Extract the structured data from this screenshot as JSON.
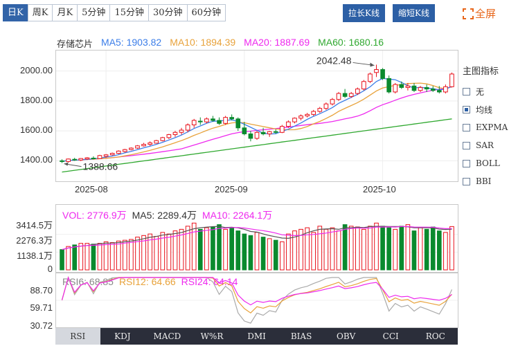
{
  "period_tabs": [
    {
      "label": "日K",
      "active": true
    },
    {
      "label": "周K",
      "active": false
    },
    {
      "label": "月K",
      "active": false
    },
    {
      "label": "5分钟",
      "active": false
    },
    {
      "label": "15分钟",
      "active": false
    },
    {
      "label": "30分钟",
      "active": false
    },
    {
      "label": "60分钟",
      "active": false
    }
  ],
  "toolbar": {
    "stretch_label": "拉长K线",
    "shrink_label": "缩短K线",
    "fullscreen_label": "全屏"
  },
  "legend": {
    "name": "存储芯片",
    "ma5": "MA5: 1903.82",
    "ma10": "MA10: 1894.39",
    "ma20": "MA20: 1887.69",
    "ma60": "MA60: 1680.16"
  },
  "colors": {
    "up": "#e8101a",
    "down": "#0a8a2e",
    "ma5": "#3b7de8",
    "ma10": "#e8a23a",
    "ma20": "#ee28ee",
    "ma60": "#2fa82f",
    "accent": "#2c5fa5",
    "fullscreen": "#e8661a"
  },
  "price_axis": [
    "2000.00",
    "1800.00",
    "1600.00",
    "1400.00"
  ],
  "date_axis": [
    "2025-08",
    "2025-09",
    "2025-10"
  ],
  "annotations": {
    "high": "2042.48",
    "low": "1388.66"
  },
  "volume": {
    "vol": "VOL: 2776.9万",
    "ma5": "MA5: 2289.4万",
    "ma10": "MA10: 2264.1万",
    "axis": [
      "3414.5万",
      "2276.3万",
      "1138.1万",
      "0"
    ]
  },
  "rsi": {
    "rsi6": "RSI6: 68.85",
    "rsi12": "RSI12: 64.66",
    "rsi24": "RSI24: 64.14",
    "axis": [
      "88.70",
      "59.71",
      "30.72"
    ]
  },
  "side_panel": {
    "title": "主图指标",
    "items": [
      {
        "label": "无",
        "checked": false
      },
      {
        "label": "均线",
        "checked": true
      },
      {
        "label": "EXPMA",
        "checked": false
      },
      {
        "label": "SAR",
        "checked": false
      },
      {
        "label": "BOLL",
        "checked": false
      },
      {
        "label": "BBI",
        "checked": false
      }
    ]
  },
  "indicator_tabs": [
    {
      "label": "RSI",
      "active": true
    },
    {
      "label": "KDJ",
      "active": false
    },
    {
      "label": "MACD",
      "active": false
    },
    {
      "label": "W%R",
      "active": false
    },
    {
      "label": "DMI",
      "active": false
    },
    {
      "label": "BIAS",
      "active": false
    },
    {
      "label": "OBV",
      "active": false
    },
    {
      "label": "CCI",
      "active": false
    },
    {
      "label": "ROC",
      "active": false
    }
  ],
  "chart_data": {
    "type": "candlestick",
    "title": "存储芯片",
    "ylim": [
      1300,
      2100
    ],
    "x_axis_ticks": [
      "2025-08",
      "2025-09",
      "2025-10"
    ],
    "candles_ohlc": [
      [
        1400,
        1410,
        1385,
        1395
      ],
      [
        1395,
        1415,
        1388.66,
        1412
      ],
      [
        1410,
        1420,
        1400,
        1405
      ],
      [
        1405,
        1418,
        1398,
        1415
      ],
      [
        1412,
        1425,
        1405,
        1420
      ],
      [
        1418,
        1430,
        1410,
        1415
      ],
      [
        1415,
        1440,
        1412,
        1435
      ],
      [
        1430,
        1445,
        1420,
        1440
      ],
      [
        1440,
        1455,
        1435,
        1450
      ],
      [
        1450,
        1470,
        1445,
        1465
      ],
      [
        1462,
        1480,
        1455,
        1475
      ],
      [
        1475,
        1490,
        1470,
        1485
      ],
      [
        1485,
        1505,
        1480,
        1500
      ],
      [
        1500,
        1520,
        1495,
        1510
      ],
      [
        1510,
        1530,
        1500,
        1520
      ],
      [
        1518,
        1540,
        1515,
        1535
      ],
      [
        1535,
        1560,
        1530,
        1555
      ],
      [
        1555,
        1580,
        1545,
        1575
      ],
      [
        1575,
        1600,
        1560,
        1590
      ],
      [
        1590,
        1620,
        1575,
        1605
      ],
      [
        1605,
        1650,
        1590,
        1640
      ],
      [
        1640,
        1680,
        1620,
        1670
      ],
      [
        1665,
        1690,
        1640,
        1660
      ],
      [
        1660,
        1690,
        1650,
        1680
      ],
      [
        1680,
        1700,
        1660,
        1670
      ],
      [
        1670,
        1690,
        1640,
        1650
      ],
      [
        1650,
        1700,
        1640,
        1690
      ],
      [
        1690,
        1710,
        1670,
        1680
      ],
      [
        1680,
        1690,
        1600,
        1620
      ],
      [
        1620,
        1660,
        1570,
        1580
      ],
      [
        1580,
        1600,
        1530,
        1550
      ],
      [
        1550,
        1600,
        1540,
        1590
      ],
      [
        1590,
        1620,
        1570,
        1580
      ],
      [
        1580,
        1600,
        1560,
        1595
      ],
      [
        1595,
        1610,
        1580,
        1590
      ],
      [
        1590,
        1640,
        1585,
        1630
      ],
      [
        1630,
        1670,
        1620,
        1660
      ],
      [
        1660,
        1690,
        1650,
        1685
      ],
      [
        1685,
        1710,
        1670,
        1700
      ],
      [
        1700,
        1720,
        1690,
        1710
      ],
      [
        1710,
        1740,
        1700,
        1730
      ],
      [
        1730,
        1760,
        1720,
        1750
      ],
      [
        1750,
        1790,
        1740,
        1780
      ],
      [
        1780,
        1820,
        1770,
        1810
      ],
      [
        1810,
        1860,
        1800,
        1850
      ],
      [
        1850,
        1880,
        1820,
        1830
      ],
      [
        1830,
        1860,
        1820,
        1850
      ],
      [
        1850,
        1890,
        1840,
        1880
      ],
      [
        1880,
        1940,
        1870,
        1930
      ],
      [
        1930,
        1990,
        1920,
        1980
      ],
      [
        1990,
        2042.48,
        1960,
        2010
      ],
      [
        2010,
        2020,
        1940,
        1950
      ],
      [
        1950,
        1970,
        1850,
        1860
      ],
      [
        1860,
        1920,
        1850,
        1910
      ],
      [
        1910,
        1930,
        1880,
        1890
      ],
      [
        1890,
        1920,
        1870,
        1900
      ],
      [
        1900,
        1920,
        1860,
        1870
      ],
      [
        1870,
        1900,
        1860,
        1890
      ],
      [
        1890,
        1910,
        1860,
        1880
      ],
      [
        1880,
        1900,
        1860,
        1870
      ],
      [
        1870,
        1900,
        1850,
        1860
      ],
      [
        1860,
        1910,
        1850,
        1895
      ],
      [
        1895,
        1990,
        1890,
        1980
      ]
    ],
    "series": [
      {
        "name": "MA5",
        "last": 1903.82
      },
      {
        "name": "MA10",
        "last": 1894.39
      },
      {
        "name": "MA20",
        "last": 1887.69
      },
      {
        "name": "MA60",
        "last": 1680.16
      }
    ],
    "volume_ylim": [
      0,
      3414.5
    ],
    "volume": [
      1300,
      1500,
      1600,
      1700,
      1700,
      1650,
      1700,
      1800,
      1750,
      1850,
      1900,
      1950,
      2100,
      2200,
      2300,
      2150,
      2400,
      2300,
      2500,
      2600,
      2800,
      3000,
      2600,
      2700,
      2750,
      2900,
      2600,
      2700,
      2500,
      2300,
      2200,
      2400,
      2100,
      2000,
      1900,
      1800,
      2300,
      2500,
      2600,
      2700,
      2400,
      2800,
      2600,
      2700,
      2500,
      2900,
      2800,
      2750,
      2600,
      2800,
      3000,
      2800,
      2700,
      2600,
      2800,
      2900,
      2500,
      2700,
      2600,
      2750,
      2500,
      2400,
      2776.9
    ],
    "rsi_ylim": [
      30.72,
      88.7
    ]
  }
}
